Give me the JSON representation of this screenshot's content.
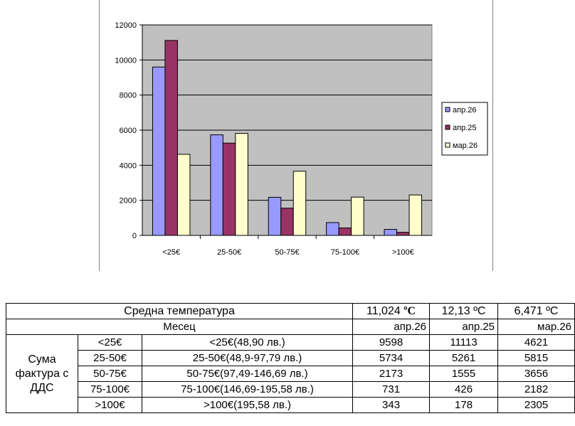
{
  "chart_data": {
    "type": "bar",
    "categories": [
      "<25€",
      "25-50€",
      "50-75€",
      "75-100€",
      ">100€"
    ],
    "series": [
      {
        "name": "апр.26",
        "values": [
          9598,
          5734,
          2173,
          731,
          343
        ],
        "color": "#9999ff"
      },
      {
        "name": "апр.25",
        "values": [
          11113,
          5261,
          1555,
          426,
          178
        ],
        "color": "#993366"
      },
      {
        "name": "мар.26",
        "values": [
          4621,
          5815,
          3656,
          2182,
          2305
        ],
        "color": "#ffffcc"
      }
    ],
    "ylim": [
      0,
      12000
    ],
    "yticks": [
      "0",
      "2000",
      "4000",
      "6000",
      "8000",
      "10000",
      "12000"
    ],
    "grid": true,
    "legend": "right",
    "plot_background": "#c0c0c0"
  },
  "table": {
    "temperature_label": "Средна температура",
    "temperatures": [
      {
        "value": "11,024 ",
        "unit": "ºC"
      },
      {
        "value": "12,13 ºC",
        "unit": ""
      },
      {
        "value": "6,471 ºC",
        "unit": ""
      }
    ],
    "month_label": "Месец",
    "months": [
      "апр.26",
      "апр.25",
      "мар.26"
    ],
    "group_label": "Сума фактура с ДДС",
    "rows": [
      {
        "range": "<25€",
        "description": "<25€(48,90 лв.)",
        "values": [
          "9598",
          "11113",
          "4621"
        ]
      },
      {
        "range": "25-50€",
        "description": "25-50€(48,9-97,79 лв.)",
        "values": [
          "5734",
          "5261",
          "5815"
        ]
      },
      {
        "range": "50-75€",
        "description": "50-75€(97,49-146,69 лв.)",
        "values": [
          "2173",
          "1555",
          "3656"
        ]
      },
      {
        "range": "75-100€",
        "description": "75-100€(146,69-195,58 лв.)",
        "values": [
          "731",
          "426",
          "2182"
        ]
      },
      {
        "range": ">100€",
        "description": ">100€(195,58 лв.)",
        "values": [
          "343",
          "178",
          "2305"
        ]
      }
    ]
  }
}
